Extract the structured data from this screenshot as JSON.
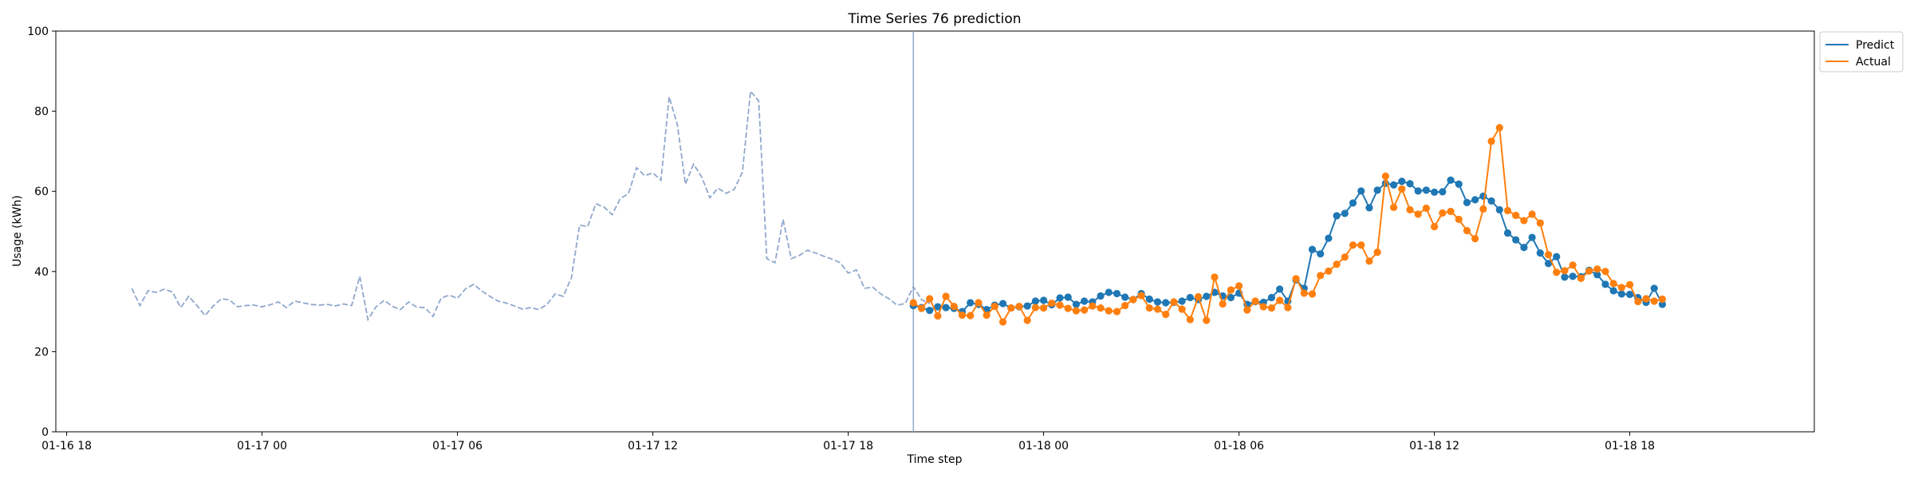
{
  "chart_data": {
    "type": "line",
    "title": "Time Series 76 prediction",
    "xlabel": "Time step",
    "ylabel": "Usage (kWh)",
    "ylim": [
      0,
      100
    ],
    "yticks": [
      0,
      20,
      40,
      60,
      80,
      100
    ],
    "xlim": [
      "2024-01-16T17:40",
      "2024-01-18T23:40"
    ],
    "xticks": [
      "2024-01-16T18:00",
      "2024-01-17T00:00",
      "2024-01-17T06:00",
      "2024-01-17T12:00",
      "2024-01-17T18:00",
      "2024-01-18T00:00",
      "2024-01-18T06:00",
      "2024-01-18T12:00",
      "2024-01-18T18:00"
    ],
    "xtick_labels": [
      "01-16 18",
      "01-17 00",
      "01-17 06",
      "01-17 12",
      "01-17 18",
      "01-18 00",
      "01-18 06",
      "01-18 12",
      "01-18 18"
    ],
    "forecast_start": "2024-01-17T20:00",
    "time_step_minutes": 15,
    "grid": false,
    "legend_position": "upper right outside",
    "series": [
      {
        "role": "history",
        "start": "2024-01-16T20:00",
        "color": "#8fa8cc",
        "linestyle": "dashed",
        "values": [
          35.8,
          31.5,
          35.2,
          34.8,
          35.6,
          34.9,
          31.0,
          33.8,
          31.5,
          29.0,
          31.4,
          33.2,
          32.9,
          31.2,
          31.5,
          31.6,
          31.2,
          31.7,
          32.4,
          31.0,
          32.6,
          32.2,
          31.8,
          31.6,
          31.8,
          31.4,
          31.9,
          31.5,
          38.8,
          28.0,
          31.2,
          32.8,
          31.3,
          30.5,
          32.4,
          31.1,
          31.0,
          28.8,
          33.4,
          34.1,
          33.3,
          35.7,
          36.8,
          35.1,
          33.8,
          32.6,
          32.1,
          31.4,
          30.6,
          31.0,
          30.5,
          31.8,
          34.4,
          33.8,
          38.5,
          51.6,
          51.2,
          56.9,
          56.1,
          54.2,
          58.2,
          59.4,
          65.9,
          63.9,
          64.6,
          62.8,
          83.6,
          76.8,
          61.8,
          66.8,
          63.6,
          58.4,
          60.8,
          59.5,
          60.5,
          64.8,
          85.0,
          82.6,
          43.2,
          42.2,
          53.0,
          43.2,
          44.0,
          45.3,
          44.6,
          43.8,
          43.1,
          42.2,
          39.6,
          40.4,
          35.8,
          36.1,
          34.4,
          33.2,
          31.6,
          32.0,
          36.2,
          33.0,
          32.0
        ]
      },
      {
        "name": "Predict",
        "start": "2024-01-17T20:00",
        "color": "#1f77b4",
        "values": [
          31.5,
          31.0,
          30.3,
          31.2,
          31.0,
          30.8,
          30.0,
          32.2,
          31.8,
          30.5,
          31.6,
          32.0,
          30.9,
          31.2,
          31.4,
          32.6,
          32.8,
          31.7,
          33.4,
          33.6,
          31.8,
          32.6,
          32.4,
          33.9,
          34.8,
          34.5,
          33.6,
          33.0,
          34.5,
          33.1,
          32.4,
          32.2,
          32.3,
          32.6,
          33.5,
          33.0,
          33.8,
          34.8,
          33.9,
          33.5,
          34.6,
          31.8,
          32.5,
          32.3,
          33.5,
          35.6,
          32.6,
          37.9,
          35.8,
          45.5,
          44.4,
          48.3,
          53.9,
          54.5,
          57.1,
          60.1,
          55.9,
          60.3,
          62.0,
          61.6,
          62.5,
          61.9,
          60.1,
          60.3,
          59.8,
          59.9,
          62.8,
          61.8,
          57.2,
          57.9,
          58.8,
          57.6,
          55.4,
          49.6,
          47.9,
          46.0,
          48.5,
          44.6,
          42.0,
          43.7,
          38.6,
          38.8,
          38.7,
          40.3,
          39.2,
          36.8,
          35.2,
          34.4,
          34.3,
          33.5,
          32.3,
          35.8,
          31.8
        ]
      },
      {
        "name": "Actual",
        "start": "2024-01-17T20:00",
        "color": "#ff7f0e",
        "values": [
          32.2,
          30.8,
          33.2,
          28.9,
          33.8,
          31.3,
          29.1,
          29.0,
          32.2,
          29.1,
          31.3,
          27.4,
          30.9,
          31.3,
          27.8,
          31.0,
          30.9,
          32.1,
          31.6,
          30.8,
          30.2,
          30.4,
          31.4,
          30.9,
          30.2,
          30.0,
          31.5,
          33.0,
          34.0,
          30.9,
          30.6,
          29.3,
          32.4,
          30.6,
          28.0,
          33.7,
          27.8,
          38.6,
          31.9,
          35.4,
          36.4,
          30.4,
          32.6,
          31.2,
          30.9,
          32.8,
          31.0,
          38.2,
          34.6,
          34.4,
          39.0,
          40.1,
          41.8,
          43.6,
          46.6,
          46.6,
          42.6,
          44.8,
          63.8,
          56.0,
          60.6,
          55.4,
          54.3,
          55.8,
          51.2,
          54.6,
          55.0,
          53.0,
          50.2,
          48.2,
          55.6,
          72.5,
          75.9,
          55.2,
          54.0,
          52.7,
          54.3,
          52.1,
          44.2,
          39.8,
          40.2,
          41.6,
          38.3,
          40.1,
          40.6,
          40.0,
          37.0,
          36.0,
          36.7,
          32.5,
          33.2,
          32.6,
          33.1
        ]
      }
    ]
  }
}
